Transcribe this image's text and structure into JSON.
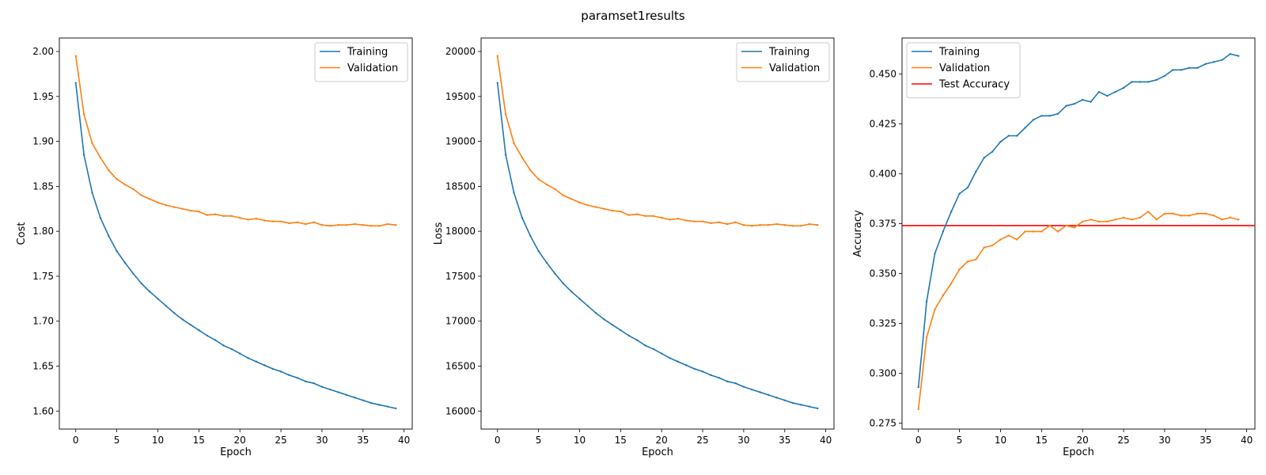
{
  "figure": {
    "title": "paramset1results",
    "colors": {
      "training": "#1f77b4",
      "validation": "#ff7f0e",
      "test": "#ff0000"
    }
  },
  "chart_data": [
    {
      "type": "line",
      "xlabel": "Epoch",
      "ylabel": "Cost",
      "xlim": [
        -2,
        41
      ],
      "ylim": [
        1.58,
        2.015
      ],
      "xticks": [
        0,
        5,
        10,
        15,
        20,
        25,
        30,
        35,
        40
      ],
      "yticks": [
        1.6,
        1.65,
        1.7,
        1.75,
        1.8,
        1.85,
        1.9,
        1.95,
        2.0
      ],
      "ytick_decimals": 2,
      "grid": false,
      "legend": "top-right",
      "series": [
        {
          "name": "Training",
          "color": "#1f77b4",
          "x_start": 0,
          "values": [
            1.965,
            1.885,
            1.843,
            1.815,
            1.795,
            1.778,
            1.765,
            1.753,
            1.742,
            1.733,
            1.725,
            1.717,
            1.709,
            1.702,
            1.696,
            1.69,
            1.684,
            1.679,
            1.673,
            1.669,
            1.664,
            1.659,
            1.655,
            1.651,
            1.647,
            1.644,
            1.64,
            1.637,
            1.633,
            1.631,
            1.627,
            1.624,
            1.621,
            1.618,
            1.615,
            1.612,
            1.609,
            1.607,
            1.605,
            1.603
          ]
        },
        {
          "name": "Validation",
          "color": "#ff7f0e",
          "x_start": 0,
          "values": [
            1.995,
            1.93,
            1.898,
            1.882,
            1.868,
            1.858,
            1.852,
            1.847,
            1.84,
            1.836,
            1.832,
            1.829,
            1.827,
            1.825,
            1.823,
            1.822,
            1.818,
            1.819,
            1.817,
            1.817,
            1.815,
            1.813,
            1.814,
            1.812,
            1.811,
            1.811,
            1.809,
            1.81,
            1.808,
            1.81,
            1.807,
            1.806,
            1.807,
            1.807,
            1.808,
            1.807,
            1.806,
            1.806,
            1.808,
            1.807
          ]
        }
      ]
    },
    {
      "type": "line",
      "xlabel": "Epoch",
      "ylabel": "Loss",
      "xlim": [
        -2,
        41
      ],
      "ylim": [
        15800,
        20150
      ],
      "xticks": [
        0,
        5,
        10,
        15,
        20,
        25,
        30,
        35,
        40
      ],
      "yticks": [
        16000,
        16500,
        17000,
        17500,
        18000,
        18500,
        19000,
        19500,
        20000
      ],
      "ytick_decimals": 0,
      "grid": false,
      "legend": "top-right",
      "series": [
        {
          "name": "Training",
          "color": "#1f77b4",
          "x_start": 0,
          "values": [
            19650,
            18850,
            18430,
            18150,
            17950,
            17780,
            17650,
            17530,
            17420,
            17330,
            17250,
            17170,
            17090,
            17020,
            16960,
            16900,
            16840,
            16790,
            16730,
            16690,
            16640,
            16590,
            16550,
            16510,
            16470,
            16440,
            16400,
            16370,
            16330,
            16310,
            16270,
            16240,
            16210,
            16180,
            16150,
            16120,
            16090,
            16070,
            16050,
            16030
          ]
        },
        {
          "name": "Validation",
          "color": "#ff7f0e",
          "x_start": 0,
          "values": [
            19950,
            19300,
            18980,
            18820,
            18680,
            18580,
            18520,
            18470,
            18400,
            18360,
            18320,
            18290,
            18270,
            18250,
            18230,
            18220,
            18180,
            18190,
            18170,
            18170,
            18150,
            18130,
            18140,
            18120,
            18110,
            18110,
            18090,
            18100,
            18080,
            18100,
            18070,
            18060,
            18070,
            18070,
            18080,
            18070,
            18060,
            18060,
            18080,
            18070
          ]
        }
      ]
    },
    {
      "type": "line",
      "xlabel": "Epoch",
      "ylabel": "Accuracy",
      "xlim": [
        -2,
        41
      ],
      "ylim": [
        0.272,
        0.468
      ],
      "xticks": [
        0,
        5,
        10,
        15,
        20,
        25,
        30,
        35,
        40
      ],
      "yticks": [
        0.275,
        0.3,
        0.325,
        0.35,
        0.375,
        0.4,
        0.425,
        0.45
      ],
      "ytick_decimals": 3,
      "grid": false,
      "legend": "top-left",
      "series": [
        {
          "name": "Training",
          "color": "#1f77b4",
          "x_start": 0,
          "values": [
            0.293,
            0.336,
            0.36,
            0.371,
            0.381,
            0.39,
            0.393,
            0.401,
            0.408,
            0.411,
            0.416,
            0.419,
            0.419,
            0.423,
            0.427,
            0.429,
            0.429,
            0.43,
            0.434,
            0.435,
            0.437,
            0.436,
            0.441,
            0.439,
            0.441,
            0.443,
            0.446,
            0.446,
            0.446,
            0.447,
            0.449,
            0.452,
            0.452,
            0.453,
            0.453,
            0.455,
            0.456,
            0.457,
            0.46,
            0.459
          ]
        },
        {
          "name": "Validation",
          "color": "#ff7f0e",
          "x_start": 0,
          "values": [
            0.282,
            0.318,
            0.332,
            0.339,
            0.345,
            0.352,
            0.356,
            0.357,
            0.363,
            0.364,
            0.367,
            0.369,
            0.367,
            0.371,
            0.371,
            0.371,
            0.374,
            0.371,
            0.374,
            0.373,
            0.376,
            0.377,
            0.376,
            0.376,
            0.377,
            0.378,
            0.377,
            0.378,
            0.381,
            0.377,
            0.38,
            0.38,
            0.379,
            0.379,
            0.38,
            0.38,
            0.379,
            0.377,
            0.378,
            0.377
          ]
        }
      ],
      "hlines": [
        {
          "name": "Test Accuracy",
          "color": "#ff0000",
          "y": 0.374
        }
      ]
    }
  ]
}
